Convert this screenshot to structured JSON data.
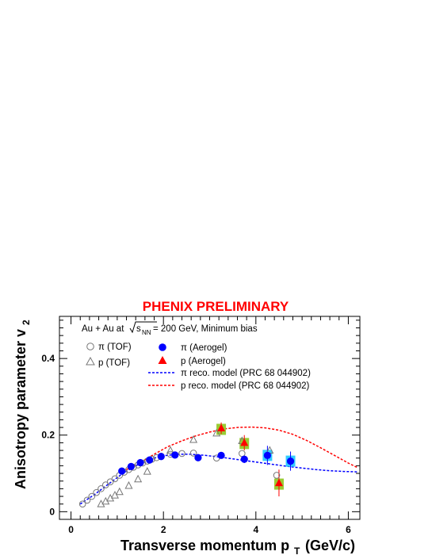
{
  "chart_data": {
    "type": "scatter",
    "title": "PHENIX PRELIMINARY",
    "title_color": "#ff0000",
    "xlabel": "Transverse momentum p",
    "xlabel_sub": "T",
    "xlabel_unit": "(GeV/c)",
    "ylabel": "Anisotropy parameter v",
    "ylabel_sub": "2",
    "xlim": [
      -0.25,
      6.25
    ],
    "ylim": [
      -0.02,
      0.51
    ],
    "xticks": [
      0,
      2,
      4,
      6
    ],
    "yticks": [
      0,
      0.2,
      0.4
    ],
    "xtick_labels": [
      "0",
      "2",
      "4",
      "6"
    ],
    "ytick_labels": [
      "0",
      "0.2",
      "0.4"
    ],
    "annotation": {
      "prefix": "Au + Au at ",
      "sqrt_var": "s",
      "sqrt_sub": "NN",
      "suffix": " = 200 GeV, Minimum bias"
    },
    "legend_placement": "top",
    "series": [
      {
        "name": "π (TOF)",
        "marker": "open-circle",
        "color": "#777777",
        "x": [
          0.25,
          0.35,
          0.45,
          0.55,
          0.65,
          0.75,
          0.85,
          0.95,
          1.05,
          1.15,
          1.25,
          1.35,
          1.45,
          1.55,
          1.65,
          1.75,
          1.85,
          1.95,
          2.15,
          2.4,
          2.65,
          3.15,
          3.7,
          4.45
        ],
        "y": [
          0.02,
          0.03,
          0.04,
          0.05,
          0.06,
          0.07,
          0.078,
          0.086,
          0.095,
          0.103,
          0.11,
          0.116,
          0.122,
          0.127,
          0.132,
          0.137,
          0.141,
          0.145,
          0.15,
          0.152,
          0.153,
          0.14,
          0.152,
          0.095
        ]
      },
      {
        "name": "p (TOF)",
        "marker": "open-triangle",
        "color": "#777777",
        "x": [
          0.65,
          0.75,
          0.85,
          0.95,
          1.05,
          1.25,
          1.45,
          1.65,
          2.15,
          2.65,
          3.15,
          3.7,
          4.3
        ],
        "y": [
          0.02,
          0.027,
          0.035,
          0.043,
          0.052,
          0.068,
          0.085,
          0.105,
          0.16,
          0.188,
          0.205,
          0.185,
          0.16
        ]
      },
      {
        "name": "π (Aerogel)",
        "marker": "filled-circle",
        "color": "#0000ff",
        "x": [
          1.1,
          1.3,
          1.5,
          1.7,
          1.95,
          2.25,
          2.75,
          3.25,
          3.75,
          4.25,
          4.75
        ],
        "y": [
          0.106,
          0.118,
          0.128,
          0.135,
          0.144,
          0.148,
          0.141,
          0.147,
          0.137,
          0.147,
          0.132
        ],
        "yerr": [
          0.004,
          0.004,
          0.004,
          0.004,
          0.004,
          0.005,
          0.006,
          0.008,
          0.01,
          0.025,
          0.025
        ]
      },
      {
        "name": "p (Aerogel)",
        "marker": "filled-triangle",
        "color": "#ff0000",
        "x": [
          3.25,
          3.75,
          4.5
        ],
        "y": [
          0.218,
          0.18,
          0.075
        ],
        "yerr": [
          0.015,
          0.02,
          0.035
        ]
      },
      {
        "name": "π reco. model (PRC 68 044902)",
        "marker": "dashed-line",
        "color": "#0000ff",
        "x": [
          0.2,
          0.5,
          0.8,
          1.1,
          1.4,
          1.7,
          2.0,
          2.3,
          2.6,
          2.9,
          3.2,
          3.5,
          3.8,
          4.1,
          4.4,
          4.7,
          5.0,
          5.3,
          5.6,
          5.9,
          6.2
        ],
        "y": [
          0.02,
          0.044,
          0.071,
          0.098,
          0.12,
          0.137,
          0.146,
          0.15,
          0.15,
          0.147,
          0.143,
          0.138,
          0.133,
          0.128,
          0.123,
          0.118,
          0.114,
          0.11,
          0.107,
          0.105,
          0.104
        ]
      },
      {
        "name": "p reco. model (PRC 68 044902)",
        "marker": "dashed-line",
        "color": "#ff0000",
        "x": [
          1.2,
          1.5,
          1.8,
          2.1,
          2.4,
          2.7,
          3.0,
          3.3,
          3.6,
          3.9,
          4.2,
          4.5,
          4.8,
          5.1,
          5.4,
          5.7,
          6.0,
          6.2
        ],
        "y": [
          0.11,
          0.128,
          0.15,
          0.17,
          0.185,
          0.198,
          0.208,
          0.216,
          0.22,
          0.221,
          0.219,
          0.213,
          0.202,
          0.186,
          0.167,
          0.147,
          0.127,
          0.115
        ]
      }
    ],
    "systematic_boxes": [
      {
        "x": 3.25,
        "y": 0.215,
        "color": "#99cc33"
      },
      {
        "x": 3.75,
        "y": 0.178,
        "color": "#99cc33"
      },
      {
        "x": 4.5,
        "y": 0.072,
        "color": "#99cc33"
      },
      {
        "x": 4.25,
        "y": 0.147,
        "color": "#33ccff"
      },
      {
        "x": 4.75,
        "y": 0.132,
        "color": "#33ccff"
      }
    ]
  }
}
